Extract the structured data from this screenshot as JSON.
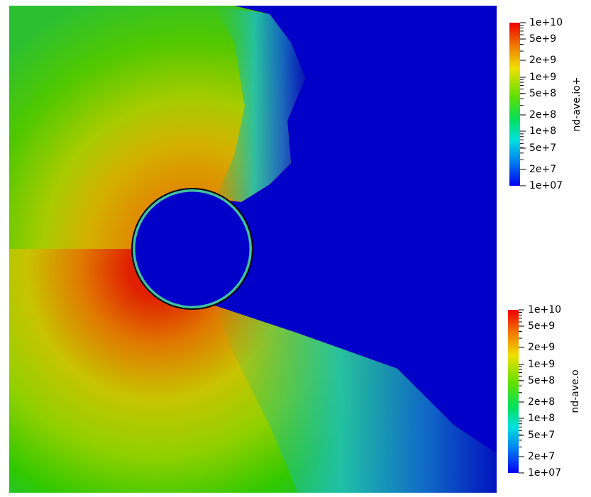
{
  "colorbars": [
    {
      "title": "nd-ave.io+",
      "ticks": [
        "1e+10",
        "5e+9",
        "2e+9",
        "1e+9",
        "5e+8",
        "2e+8",
        "1e+8",
        "5e+7",
        "2e+7",
        "1e+07"
      ]
    },
    {
      "title": "nd-ave.o",
      "ticks": [
        "1e+10",
        "5e+9",
        "2e+9",
        "1e+9",
        "5e+8",
        "2e+8",
        "1e+8",
        "5e+7",
        "2e+7",
        "1e+07"
      ]
    }
  ]
}
